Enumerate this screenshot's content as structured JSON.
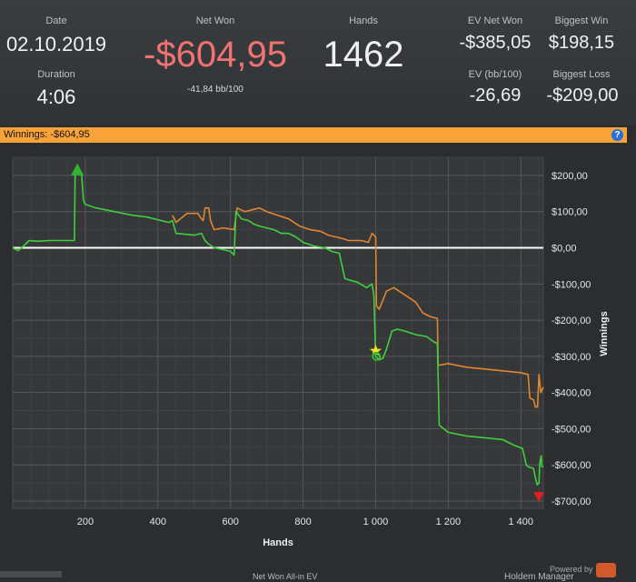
{
  "stats": {
    "date": {
      "label": "Date",
      "value": "02.10.2019"
    },
    "duration": {
      "label": "Duration",
      "value": "4:06"
    },
    "net_won": {
      "label": "Net Won",
      "value": "-$604,95",
      "sub": "-41,84 bb/100"
    },
    "hands": {
      "label": "Hands",
      "value": "1462"
    },
    "ev_net_won": {
      "label": "EV Net Won",
      "value": "-$385,05"
    },
    "biggest_win": {
      "label": "Biggest Win",
      "value": "$198,15"
    },
    "ev_bb100": {
      "label": "EV (bb/100)",
      "value": "-26,69"
    },
    "biggest_loss": {
      "label": "Biggest Loss",
      "value": "-$209,00"
    }
  },
  "colors": {
    "net_won": "#f07272",
    "winnings": "#3fcf3f",
    "ev": "#e0862f",
    "zero_line": "#ffffff",
    "bar": "#f7a33a"
  },
  "bar": {
    "text": "Winnings: -$604,95",
    "help_icon": "?"
  },
  "footer": {
    "powered_by": "Powered by",
    "brand": "Holdem Manager",
    "bottom_text": "Net Won   All-in EV"
  },
  "chart_data": {
    "type": "line",
    "xlabel": "Hands",
    "ylabel": "Winnings",
    "xlim": [
      0,
      1462
    ],
    "ylim": [
      -720,
      250
    ],
    "x_ticks": [
      200,
      400,
      600,
      800,
      1000,
      1200,
      1400
    ],
    "x_tick_labels": [
      "200",
      "400",
      "600",
      "800",
      "1 000",
      "1 200",
      "1 400"
    ],
    "y_ticks": [
      200,
      100,
      0,
      -100,
      -200,
      -300,
      -400,
      -500,
      -600,
      -700
    ],
    "y_tick_labels": [
      "$200,00",
      "$100,00",
      "$0,00",
      "-$100,00",
      "-$200,00",
      "-$300,00",
      "-$400,00",
      "-$500,00",
      "-$600,00",
      "-$700,00"
    ],
    "grid": true,
    "series": [
      {
        "name": "",
        "color": "#3fcf3f",
        "points": [
          [
            0,
            0
          ],
          [
            15,
            -8
          ],
          [
            30,
            5
          ],
          [
            45,
            20
          ],
          [
            70,
            18
          ],
          [
            100,
            20
          ],
          [
            160,
            20
          ],
          [
            170,
            20
          ],
          [
            172,
            200
          ],
          [
            180,
            210
          ],
          [
            190,
            200
          ],
          [
            195,
            130
          ],
          [
            200,
            120
          ],
          [
            230,
            110
          ],
          [
            280,
            100
          ],
          [
            330,
            90
          ],
          [
            370,
            85
          ],
          [
            430,
            70
          ],
          [
            440,
            75
          ],
          [
            450,
            40
          ],
          [
            500,
            35
          ],
          [
            520,
            40
          ],
          [
            530,
            20
          ],
          [
            540,
            10
          ],
          [
            555,
            0
          ],
          [
            580,
            -5
          ],
          [
            600,
            -10
          ],
          [
            610,
            -20
          ],
          [
            615,
            100
          ],
          [
            630,
            80
          ],
          [
            650,
            75
          ],
          [
            665,
            65
          ],
          [
            680,
            60
          ],
          [
            700,
            55
          ],
          [
            720,
            50
          ],
          [
            740,
            40
          ],
          [
            760,
            40
          ],
          [
            780,
            30
          ],
          [
            800,
            15
          ],
          [
            830,
            5
          ],
          [
            860,
            0
          ],
          [
            880,
            -10
          ],
          [
            900,
            -15
          ],
          [
            915,
            -85
          ],
          [
            930,
            -90
          ],
          [
            950,
            -95
          ],
          [
            975,
            -110
          ],
          [
            990,
            -100
          ],
          [
            995,
            -130
          ],
          [
            1000,
            -300
          ],
          [
            1010,
            -310
          ],
          [
            1020,
            -305
          ],
          [
            1030,
            -280
          ],
          [
            1045,
            -230
          ],
          [
            1060,
            -225
          ],
          [
            1080,
            -230
          ],
          [
            1110,
            -240
          ],
          [
            1140,
            -245
          ],
          [
            1160,
            -260
          ],
          [
            1170,
            -265
          ],
          [
            1175,
            -490
          ],
          [
            1200,
            -510
          ],
          [
            1250,
            -520
          ],
          [
            1300,
            -525
          ],
          [
            1350,
            -530
          ],
          [
            1380,
            -545
          ],
          [
            1405,
            -555
          ],
          [
            1415,
            -600
          ],
          [
            1420,
            -605
          ],
          [
            1435,
            -610
          ],
          [
            1440,
            -635
          ],
          [
            1445,
            -655
          ],
          [
            1450,
            -650
          ],
          [
            1452,
            -600
          ],
          [
            1456,
            -575
          ],
          [
            1458,
            -605
          ],
          [
            1462,
            -605
          ]
        ]
      },
      {
        "name": "",
        "color": "#e0862f",
        "points": [
          [
            440,
            90
          ],
          [
            450,
            70
          ],
          [
            480,
            95
          ],
          [
            510,
            95
          ],
          [
            520,
            80
          ],
          [
            525,
            75
          ],
          [
            530,
            110
          ],
          [
            540,
            110
          ],
          [
            545,
            75
          ],
          [
            555,
            50
          ],
          [
            580,
            55
          ],
          [
            610,
            50
          ],
          [
            618,
            110
          ],
          [
            640,
            100
          ],
          [
            680,
            110
          ],
          [
            700,
            100
          ],
          [
            730,
            90
          ],
          [
            760,
            80
          ],
          [
            790,
            60
          ],
          [
            820,
            50
          ],
          [
            850,
            45
          ],
          [
            870,
            35
          ],
          [
            890,
            30
          ],
          [
            910,
            25
          ],
          [
            925,
            20
          ],
          [
            960,
            20
          ],
          [
            980,
            15
          ],
          [
            990,
            40
          ],
          [
            1000,
            30
          ],
          [
            1002,
            -160
          ],
          [
            1010,
            -170
          ],
          [
            1030,
            -120
          ],
          [
            1050,
            -110
          ],
          [
            1080,
            -130
          ],
          [
            1110,
            -150
          ],
          [
            1130,
            -180
          ],
          [
            1150,
            -190
          ],
          [
            1170,
            -195
          ],
          [
            1172,
            -325
          ],
          [
            1200,
            -320
          ],
          [
            1250,
            -330
          ],
          [
            1300,
            -335
          ],
          [
            1350,
            -340
          ],
          [
            1400,
            -345
          ],
          [
            1420,
            -350
          ],
          [
            1425,
            -415
          ],
          [
            1435,
            -420
          ],
          [
            1440,
            -440
          ],
          [
            1446,
            -440
          ],
          [
            1450,
            -350
          ],
          [
            1455,
            -400
          ],
          [
            1462,
            -385
          ]
        ]
      }
    ],
    "markers": [
      {
        "type": "triangle-up",
        "x": 178,
        "y": 218,
        "color": "#2fb52f"
      },
      {
        "type": "star",
        "x": 1000,
        "y": -285,
        "color": "#f2e21d"
      },
      {
        "type": "circle",
        "x": 1002,
        "y": -300,
        "color": "#2fb52f"
      },
      {
        "type": "triangle-down",
        "x": 1450,
        "y": -690,
        "color": "#e02020"
      }
    ]
  }
}
